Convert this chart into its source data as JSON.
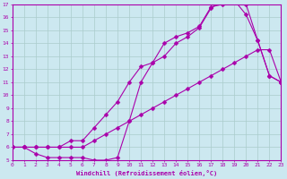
{
  "xlabel": "Windchill (Refroidissement éolien,°C)",
  "bg_color": "#cce8f0",
  "grid_color": "#aacccc",
  "line_color": "#aa00aa",
  "xmin": 0,
  "xmax": 23,
  "ymin": 5,
  "ymax": 17,
  "line1_x": [
    0,
    1,
    2,
    3,
    4,
    5,
    6,
    7,
    8,
    9,
    10,
    11,
    12,
    13,
    14,
    15,
    16,
    17,
    18,
    19,
    20,
    21,
    22,
    23
  ],
  "line1_y": [
    6,
    6,
    6,
    6,
    6,
    6,
    6,
    6.5,
    7.0,
    7.5,
    8.0,
    8.5,
    9.0,
    9.5,
    10.0,
    10.5,
    11.0,
    11.5,
    12.0,
    12.5,
    13.0,
    13.5,
    13.5,
    11.0
  ],
  "line2_x": [
    0,
    1,
    2,
    3,
    4,
    5,
    6,
    7,
    8,
    9,
    10,
    11,
    12,
    13,
    14,
    15,
    16,
    17,
    18,
    19,
    20,
    21,
    22,
    23
  ],
  "line2_y": [
    6,
    6,
    5.5,
    5.2,
    5.2,
    5.2,
    5.2,
    5.0,
    5.0,
    5.2,
    8.0,
    11.0,
    12.5,
    14.0,
    14.5,
    14.8,
    15.3,
    16.8,
    17.0,
    17.3,
    16.2,
    14.2,
    11.5,
    11.0
  ],
  "line3_x": [
    0,
    1,
    2,
    3,
    4,
    5,
    6,
    7,
    8,
    9,
    10,
    11,
    12,
    13,
    14,
    15,
    16,
    17,
    18,
    19,
    20,
    21,
    22,
    23
  ],
  "line3_y": [
    6,
    6,
    6,
    6,
    6,
    6.5,
    6.5,
    7.5,
    8.5,
    9.5,
    11.0,
    12.2,
    12.5,
    13.0,
    14.0,
    14.5,
    15.2,
    16.7,
    17.3,
    17.5,
    17.0,
    14.2,
    11.5,
    11.0
  ]
}
